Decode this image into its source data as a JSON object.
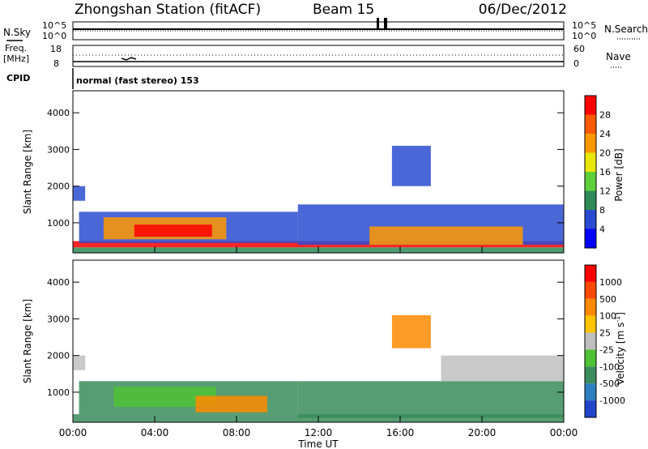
{
  "header": {
    "title": "Zhongshan Station (fitACF)",
    "beam": "Beam 15",
    "date": "06/Dec/2012"
  },
  "top_panels": {
    "nsky_label": "N.Sky",
    "nsky_ticks": [
      "10^5",
      "10^0"
    ],
    "nsky_right_ticks": [
      "10^5",
      "10^0"
    ],
    "nsearch_label": "N.Search",
    "freq_label": "Freq.",
    "freq_unit": "[MHz]",
    "freq_ticks": [
      "18",
      "8"
    ],
    "nave_ticks": [
      "60",
      "0"
    ],
    "nave_label": "Nave",
    "cpid_label": "CPID",
    "cpid_text": "normal (fast stereo) 153"
  },
  "chart_data": [
    {
      "type": "heatmap",
      "panel": "power",
      "ylabel": "Slant Range [km]",
      "yticks": [
        "4000",
        "3000",
        "2000",
        "1000"
      ],
      "ylim": [
        180,
        4600
      ],
      "xlim": [
        0,
        24
      ],
      "colorbar_label": "Power [dB]",
      "colorbar_ticks": [
        "28",
        "24",
        "20",
        "16",
        "12",
        "8",
        "4"
      ],
      "colorbar_colors": [
        "#0000ff",
        "#2a4cd1",
        "#2e8b57",
        "#5fcf3a",
        "#e8e60a",
        "#ff9900",
        "#ff5a00",
        "#ff0000"
      ],
      "regions": [
        {
          "t0": 0.0,
          "t1": 24.0,
          "r0": 190,
          "r1": 330,
          "color": "#2e8b57"
        },
        {
          "t0": 0.0,
          "t1": 24.0,
          "r0": 330,
          "r1": 500,
          "color": "#ff0000"
        },
        {
          "t0": 0.3,
          "t1": 11.0,
          "r0": 450,
          "r1": 1300,
          "color": "#2a4cd1"
        },
        {
          "t0": 1.5,
          "t1": 7.5,
          "r0": 550,
          "r1": 1150,
          "color": "#ff9900"
        },
        {
          "t0": 3.0,
          "t1": 6.8,
          "r0": 620,
          "r1": 950,
          "color": "#ff0000"
        },
        {
          "t0": 0.0,
          "t1": 0.6,
          "r0": 1600,
          "r1": 2000,
          "color": "#2a4cd1"
        },
        {
          "t0": 11.0,
          "t1": 24.0,
          "r0": 400,
          "r1": 1500,
          "color": "#2a4cd1"
        },
        {
          "t0": 14.5,
          "t1": 22.0,
          "r0": 400,
          "r1": 900,
          "color": "#ff9900"
        },
        {
          "t0": 15.6,
          "t1": 17.5,
          "r0": 2000,
          "r1": 3100,
          "color": "#2a4cd1"
        }
      ]
    },
    {
      "type": "heatmap",
      "panel": "velocity",
      "ylabel": "Slant Range [km]",
      "yticks": [
        "4000",
        "3000",
        "2000",
        "1000"
      ],
      "ylim": [
        180,
        4600
      ],
      "xlim": [
        0,
        24
      ],
      "xticks": [
        "00:00",
        "04:00",
        "08:00",
        "12:00",
        "16:00",
        "20:00",
        "00:00"
      ],
      "xlabel": "Time UT",
      "colorbar_label": "Velocity [m s",
      "colorbar_label_sup": "-1",
      "colorbar_label_end": "]",
      "colorbar_ticks": [
        "1000",
        "500",
        "100",
        "25",
        "-25",
        "-100",
        "-500",
        "-1000"
      ],
      "colorbar_colors": [
        "#2145c9",
        "#2e7fbf",
        "#3a8c5c",
        "#4ec235",
        "#bfbfbf",
        "#ffc400",
        "#ff8a00",
        "#ff4a00",
        "#ff0000"
      ],
      "regions": [
        {
          "t0": 0.0,
          "t1": 24.0,
          "r0": 190,
          "r1": 400,
          "color": "#3a8c5c"
        },
        {
          "t0": 0.3,
          "t1": 11.0,
          "r0": 400,
          "r1": 1300,
          "color": "#3a8c5c"
        },
        {
          "t0": 2.0,
          "t1": 7.0,
          "r0": 600,
          "r1": 1150,
          "color": "#4ec235"
        },
        {
          "t0": 6.0,
          "t1": 9.5,
          "r0": 450,
          "r1": 900,
          "color": "#ff8a00"
        },
        {
          "t0": 0.0,
          "t1": 0.6,
          "r0": 1600,
          "r1": 2000,
          "color": "#bfbfbf"
        },
        {
          "t0": 11.0,
          "t1": 24.0,
          "r0": 300,
          "r1": 1300,
          "color": "#3a8c5c"
        },
        {
          "t0": 18.0,
          "t1": 24.0,
          "r0": 1300,
          "r1": 2000,
          "color": "#bfbfbf"
        },
        {
          "t0": 15.6,
          "t1": 17.5,
          "r0": 2200,
          "r1": 3100,
          "color": "#ff8a00"
        }
      ]
    }
  ]
}
